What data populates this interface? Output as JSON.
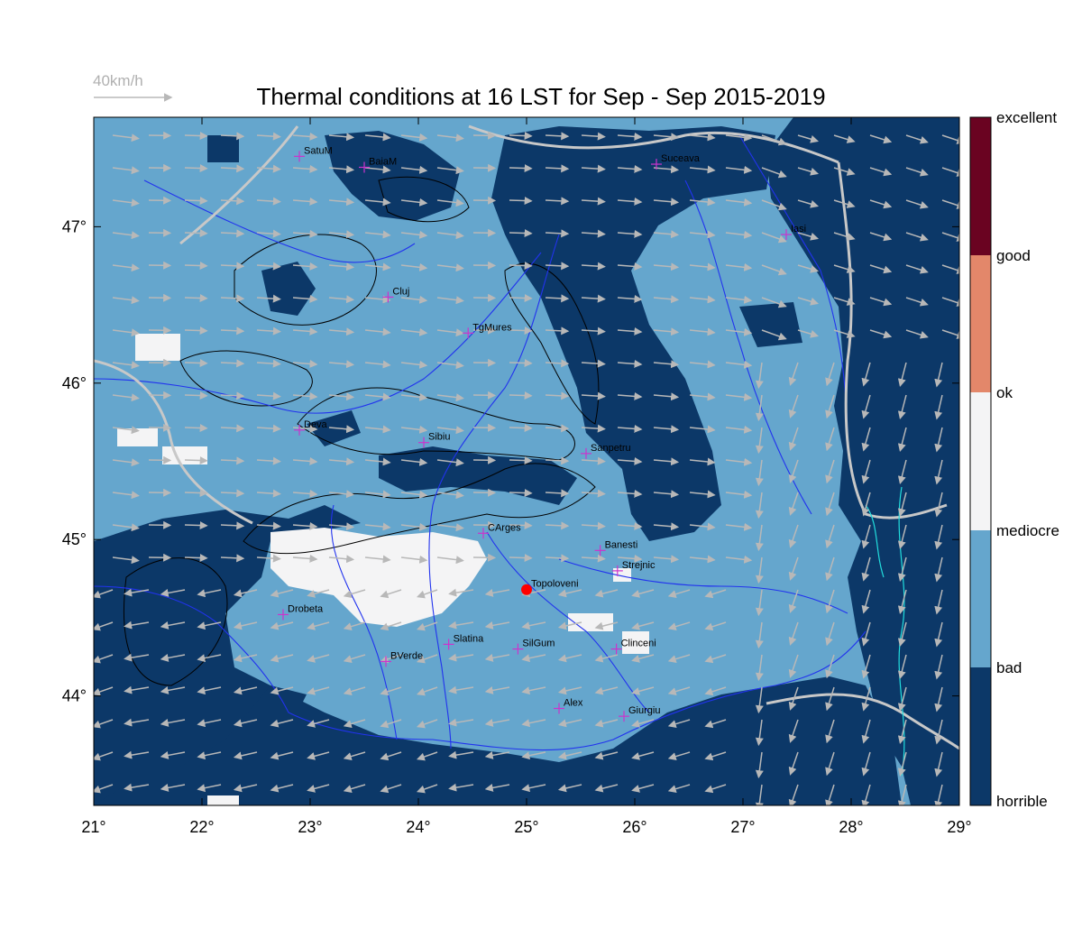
{
  "title": "Thermal conditions at 16 LST for Sep - Sep  2015-2019",
  "wind_scale_label": "40km/h",
  "map": {
    "x_axis_ticks": [
      "21°",
      "22°",
      "23°",
      "24°",
      "25°",
      "26°",
      "27°",
      "28°",
      "29°"
    ],
    "y_axis_ticks": [
      "44°",
      "45°",
      "46°",
      "47°"
    ],
    "lon_range": [
      21,
      29
    ],
    "lat_range": [
      43.3,
      47.7
    ]
  },
  "legend": {
    "categories": [
      {
        "label": "horrible",
        "color": "#0c3868"
      },
      {
        "label": "bad",
        "color": "#65a6cd"
      },
      {
        "label": "mediocre",
        "color": "#f4f4f5"
      },
      {
        "label": "ok",
        "color": "#e3876a"
      },
      {
        "label": "good",
        "color": "#6a0321"
      },
      {
        "label": "excellent",
        "color": ""
      }
    ]
  },
  "colors": {
    "horrible": "#0c3868",
    "bad": "#65a6cd",
    "mediocre": "#f4f4f5",
    "river": "#2233ee",
    "border": "#c8c8c8",
    "station": "#cc33cc",
    "highlight": "#ff0000",
    "wind": "#b8b8b8",
    "coast": "#22dddd"
  },
  "cities": [
    {
      "name": "SatuM",
      "lon": 22.9,
      "lat": 47.45
    },
    {
      "name": "BaiaM",
      "lon": 23.5,
      "lat": 47.38
    },
    {
      "name": "Suceava",
      "lon": 26.2,
      "lat": 47.4
    },
    {
      "name": "Iasi",
      "lon": 27.4,
      "lat": 46.95
    },
    {
      "name": "Cluj",
      "lon": 23.72,
      "lat": 46.55
    },
    {
      "name": "TgMures",
      "lon": 24.46,
      "lat": 46.32
    },
    {
      "name": "Deva",
      "lon": 22.9,
      "lat": 45.7
    },
    {
      "name": "Sibiu",
      "lon": 24.05,
      "lat": 45.62
    },
    {
      "name": "Sanpetru",
      "lon": 25.55,
      "lat": 45.55
    },
    {
      "name": "CArges",
      "lon": 24.6,
      "lat": 45.04
    },
    {
      "name": "Banesti",
      "lon": 25.68,
      "lat": 44.93
    },
    {
      "name": "Strejnic",
      "lon": 25.84,
      "lat": 44.8
    },
    {
      "name": "Topoloveni",
      "lon": 25.0,
      "lat": 44.68,
      "highlight": true
    },
    {
      "name": "Drobeta",
      "lon": 22.75,
      "lat": 44.52
    },
    {
      "name": "Slatina",
      "lon": 24.28,
      "lat": 44.33
    },
    {
      "name": "SilGum",
      "lon": 24.92,
      "lat": 44.3
    },
    {
      "name": "Clinceni",
      "lon": 25.83,
      "lat": 44.3
    },
    {
      "name": "BVerde",
      "lon": 23.7,
      "lat": 44.22
    },
    {
      "name": "Alex",
      "lon": 25.3,
      "lat": 43.92
    },
    {
      "name": "Giurgiu",
      "lon": 25.9,
      "lat": 43.87
    }
  ]
}
